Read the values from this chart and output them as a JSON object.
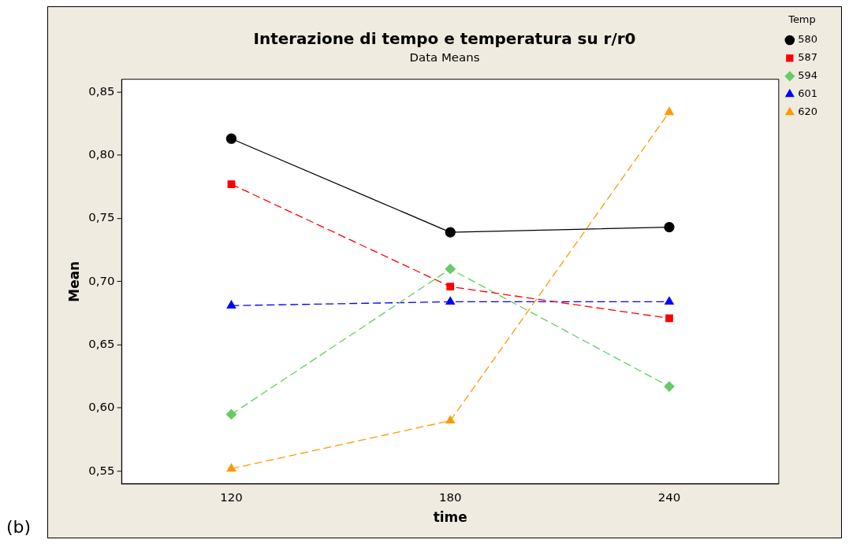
{
  "chart_data": {
    "type": "line",
    "title": "Interazione di tempo e temperatura su r/r0",
    "subtitle": "Data Means",
    "xlabel": "time",
    "ylabel": "Mean",
    "legend_title": "Temp",
    "annotations": [
      "(b)"
    ],
    "x": [
      120,
      180,
      240
    ],
    "xlim": [
      90,
      270
    ],
    "xticks": [
      120,
      180,
      240
    ],
    "ylim": [
      0.54,
      0.86
    ],
    "yticks": [
      {
        "value": 0.55,
        "label": "0,55"
      },
      {
        "value": 0.6,
        "label": "0,60"
      },
      {
        "value": 0.65,
        "label": "0,65"
      },
      {
        "value": 0.7,
        "label": "0,70"
      },
      {
        "value": 0.75,
        "label": "0,75"
      },
      {
        "value": 0.8,
        "label": "0,80"
      },
      {
        "value": 0.85,
        "label": "0,85"
      }
    ],
    "grid": false,
    "legend": "top right",
    "series": [
      {
        "name": "580",
        "color": "#000000",
        "values": [
          0.813,
          0.739,
          0.743
        ],
        "marker": "circle",
        "line_style": "solid"
      },
      {
        "name": "587",
        "color": "#ff0000",
        "values": [
          0.777,
          0.696,
          0.671
        ],
        "marker": "square",
        "line_style": "dashed"
      },
      {
        "name": "594",
        "color": "#66cc66",
        "values": [
          0.595,
          0.71,
          0.617
        ],
        "marker": "diamond",
        "line_style": "dashed"
      },
      {
        "name": "601",
        "color": "#0000ff",
        "values": [
          0.681,
          0.684,
          0.684
        ],
        "marker": "triangle",
        "line_style": "dashed"
      },
      {
        "name": "620",
        "color": "#ff9900",
        "values": [
          0.552,
          0.59,
          0.834
        ],
        "marker": "triangle",
        "line_style": "dashed"
      }
    ]
  }
}
